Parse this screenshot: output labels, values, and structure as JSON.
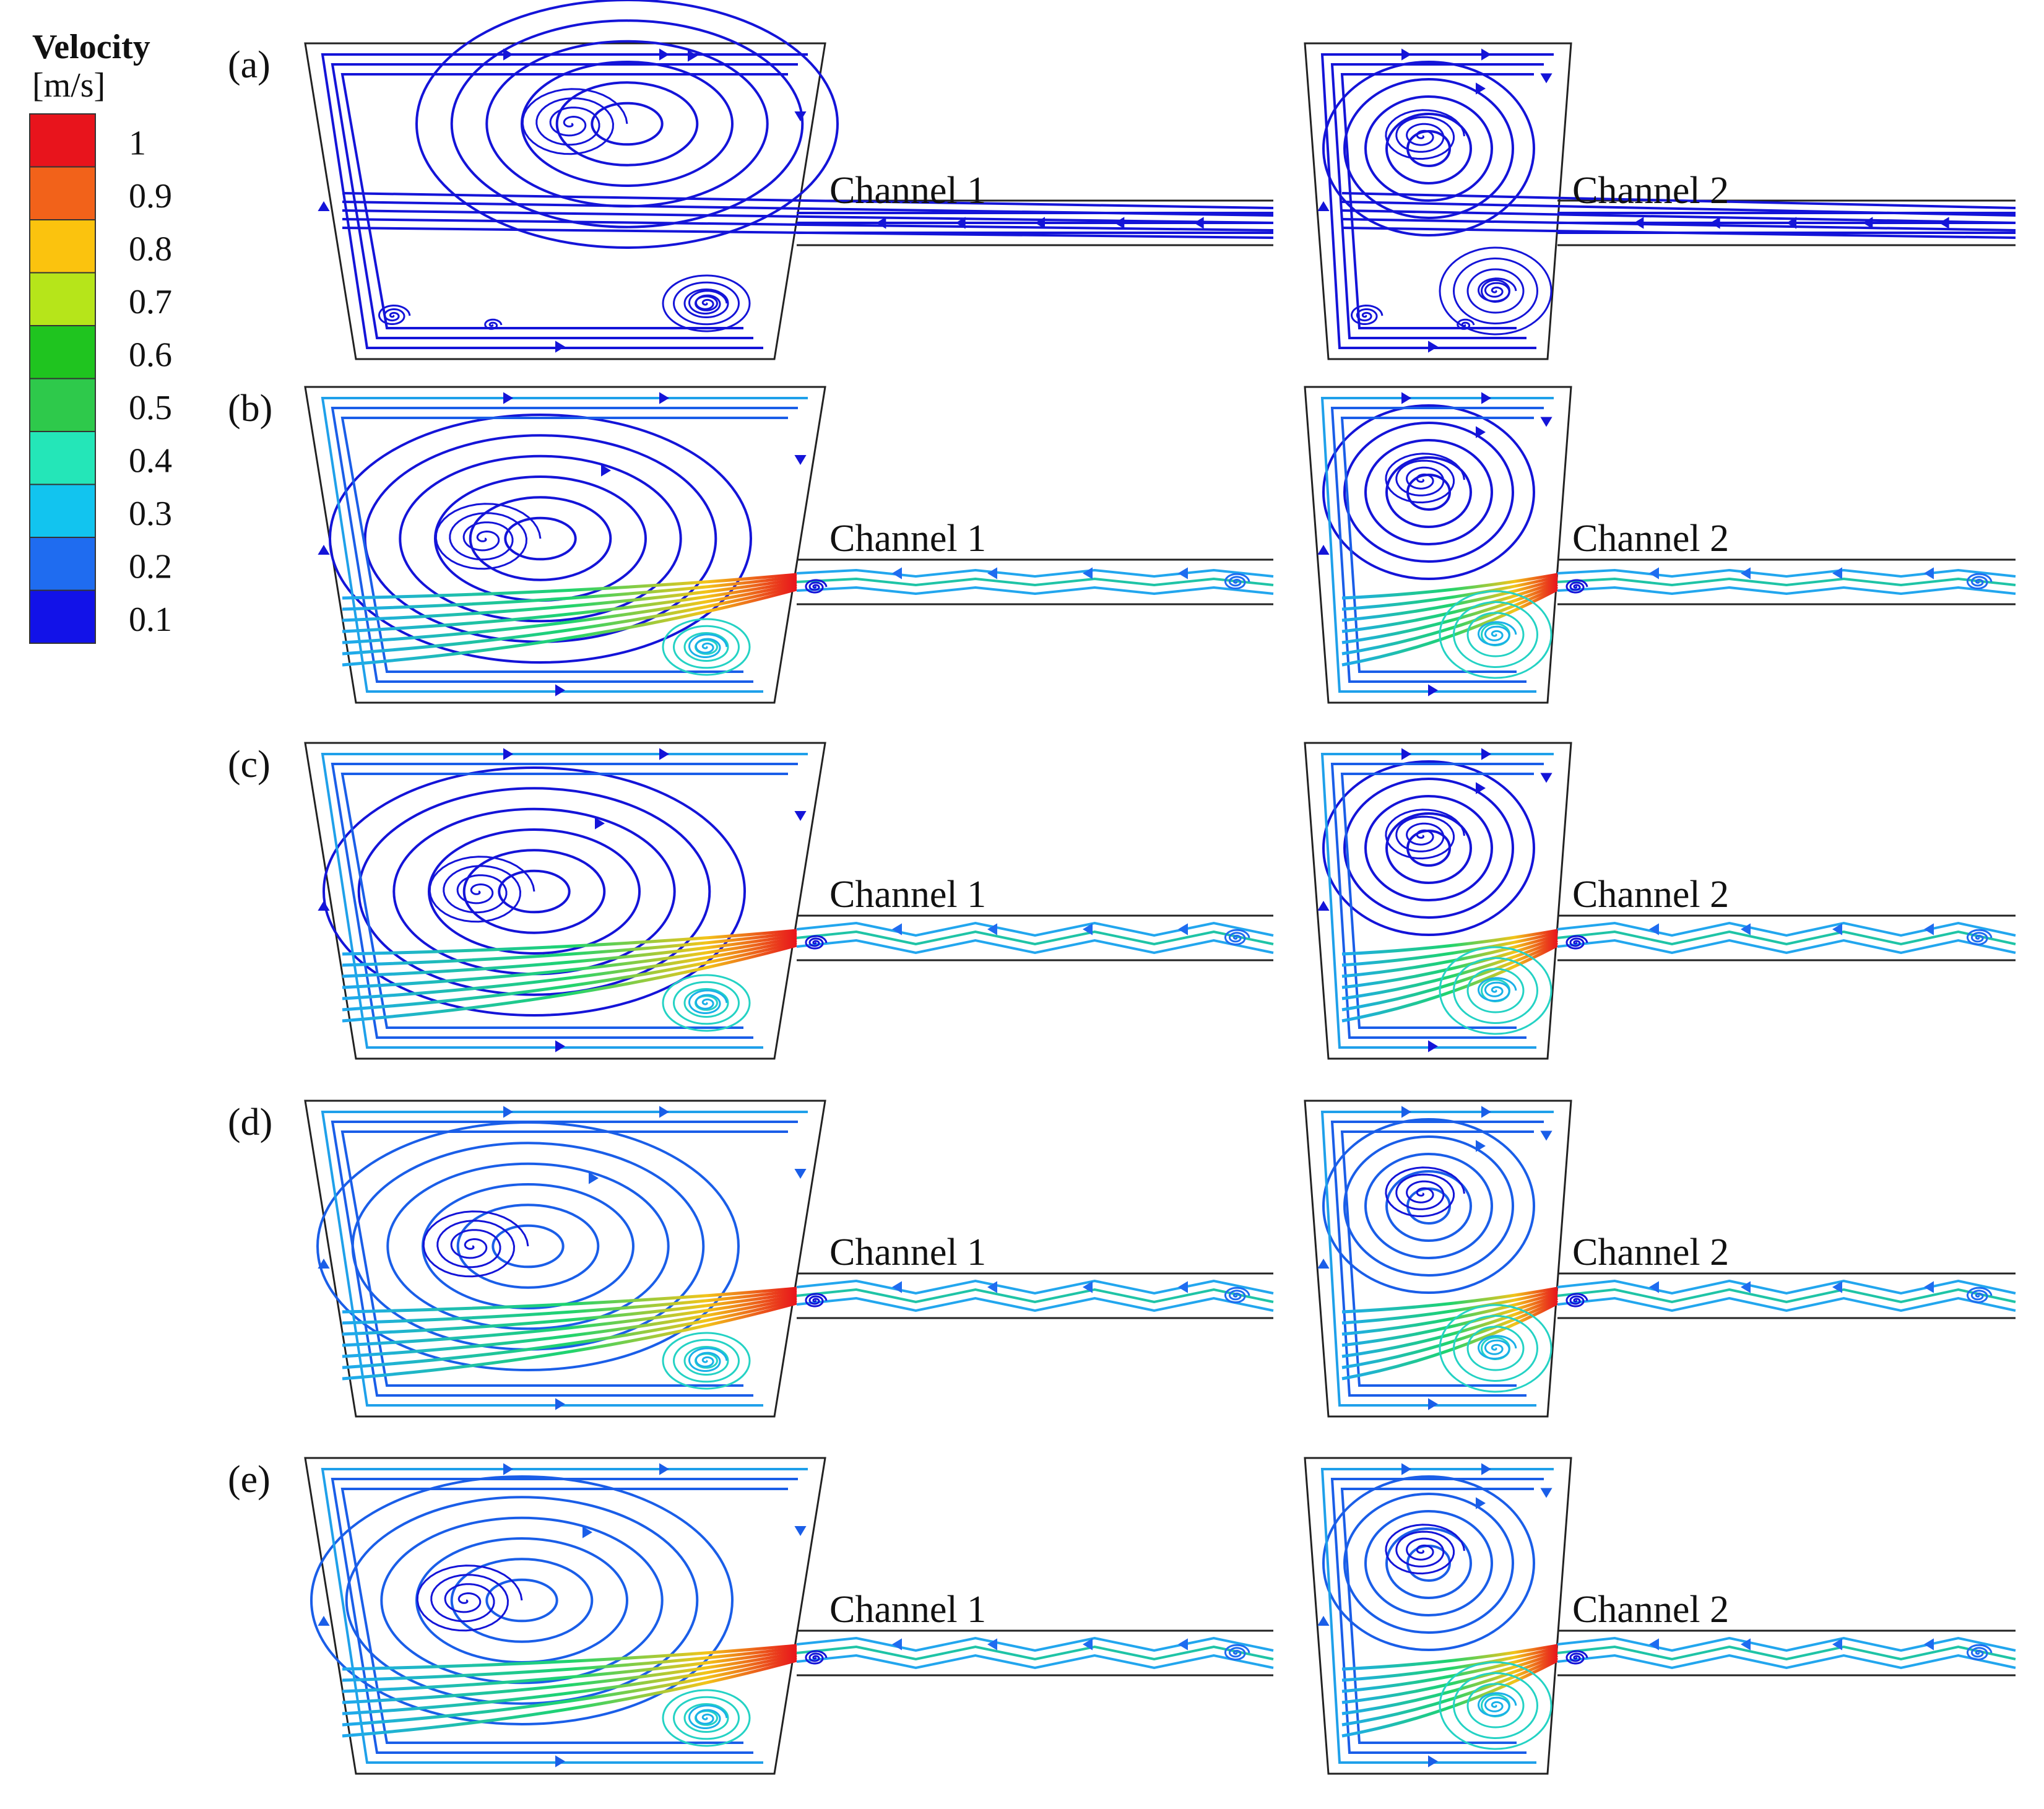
{
  "legend": {
    "title": "Velocity",
    "unit": "[m/s]",
    "ticks": [
      "1",
      "0.9",
      "0.8",
      "0.7",
      "0.6",
      "0.5",
      "0.4",
      "0.3",
      "0.2",
      "0.1"
    ],
    "colors": [
      "#e8141c",
      "#f2621a",
      "#fbc30e",
      "#b6e51a",
      "#1fc41f",
      "#2ec94b",
      "#24e6b8",
      "#12c4ef",
      "#1f6cf0",
      "#1212e8"
    ]
  },
  "panels": [
    {
      "label": "(a)",
      "channels": [
        "Channel 1",
        "Channel 2"
      ]
    },
    {
      "label": "(b)",
      "channels": [
        "Channel 1",
        "Channel 2"
      ]
    },
    {
      "label": "(c)",
      "channels": [
        "Channel 1",
        "Channel 2"
      ]
    },
    {
      "label": "(d)",
      "channels": [
        "Channel 1",
        "Channel 2"
      ]
    },
    {
      "label": "(e)",
      "channels": [
        "Channel 1",
        "Channel 2"
      ]
    }
  ]
}
